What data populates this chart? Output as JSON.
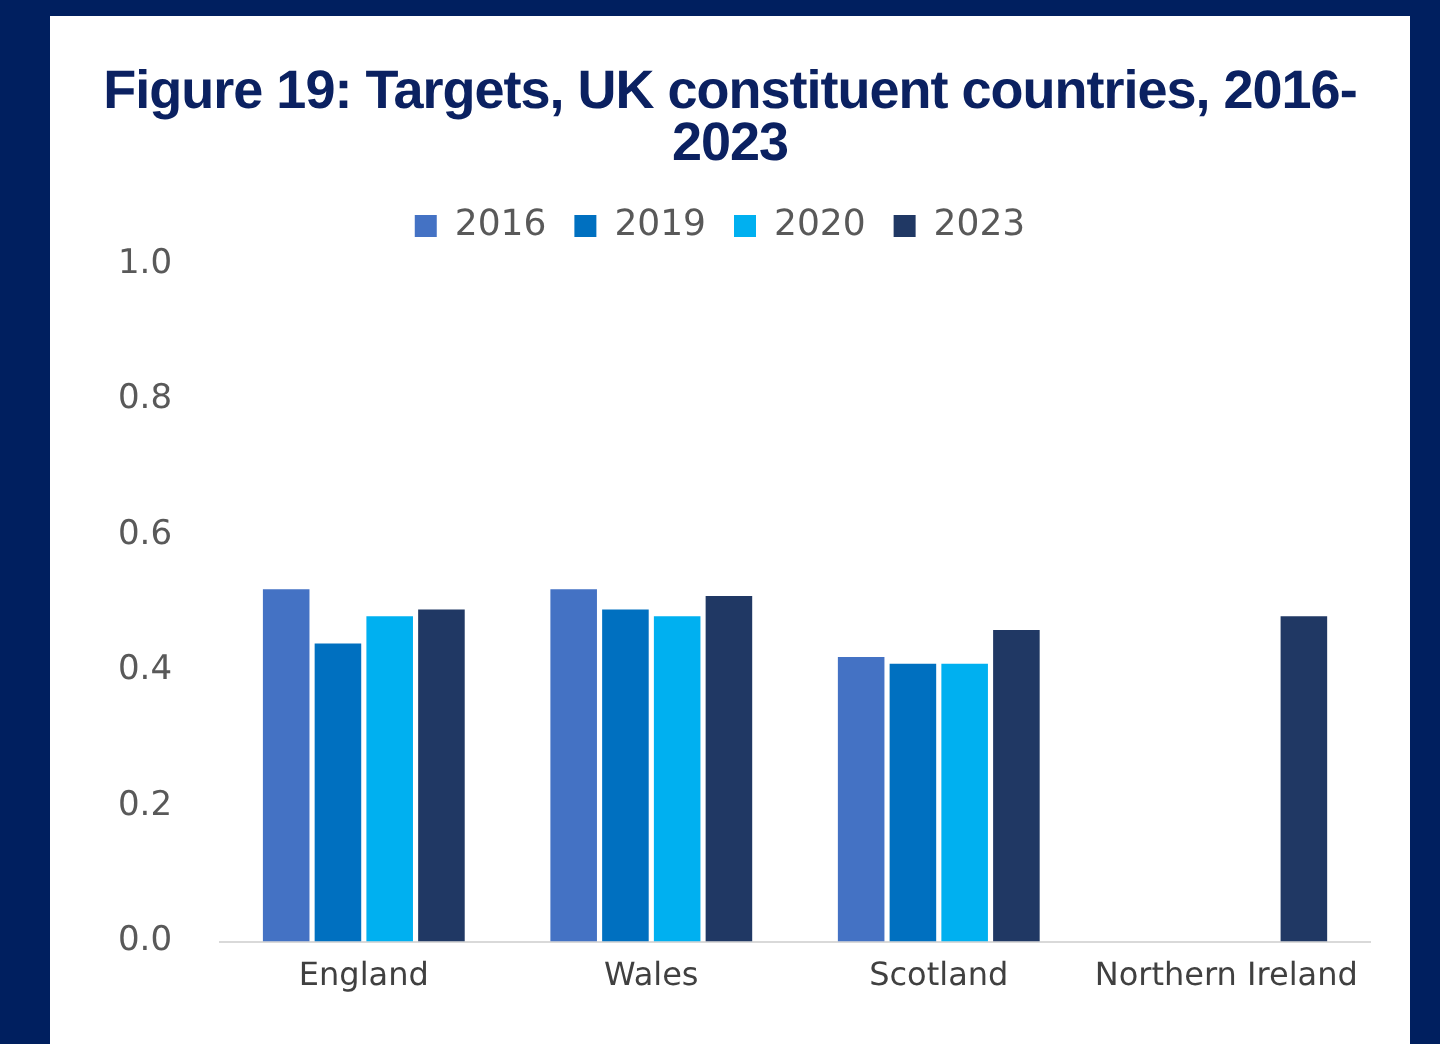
{
  "chart_data": {
    "type": "bar",
    "title": "Figure 19: Targets, UK constituent countries, 2016-2023",
    "categories": [
      "England",
      "Wales",
      "Scotland",
      "Northern Ireland"
    ],
    "series": [
      {
        "name": "2016",
        "color": "#4472c4",
        "values": [
          0.52,
          0.52,
          0.42,
          null
        ]
      },
      {
        "name": "2019",
        "color": "#0070c0",
        "values": [
          0.44,
          0.49,
          0.41,
          null
        ]
      },
      {
        "name": "2020",
        "color": "#00b0f0",
        "values": [
          0.48,
          0.48,
          0.41,
          null
        ]
      },
      {
        "name": "2023",
        "color": "#203864",
        "values": [
          0.49,
          0.51,
          0.46,
          0.48
        ]
      }
    ],
    "ylim": [
      0,
      1
    ],
    "yticks": [
      {
        "value": 0,
        "label": "0.0"
      },
      {
        "value": 0.2,
        "label": "0.2"
      },
      {
        "value": 0.4,
        "label": "0.4"
      },
      {
        "value": 0.6,
        "label": "0.6"
      },
      {
        "value": 0.8,
        "label": "0.8"
      },
      {
        "value": 1,
        "label": "1.0"
      }
    ],
    "grid": false,
    "legend": "top"
  }
}
